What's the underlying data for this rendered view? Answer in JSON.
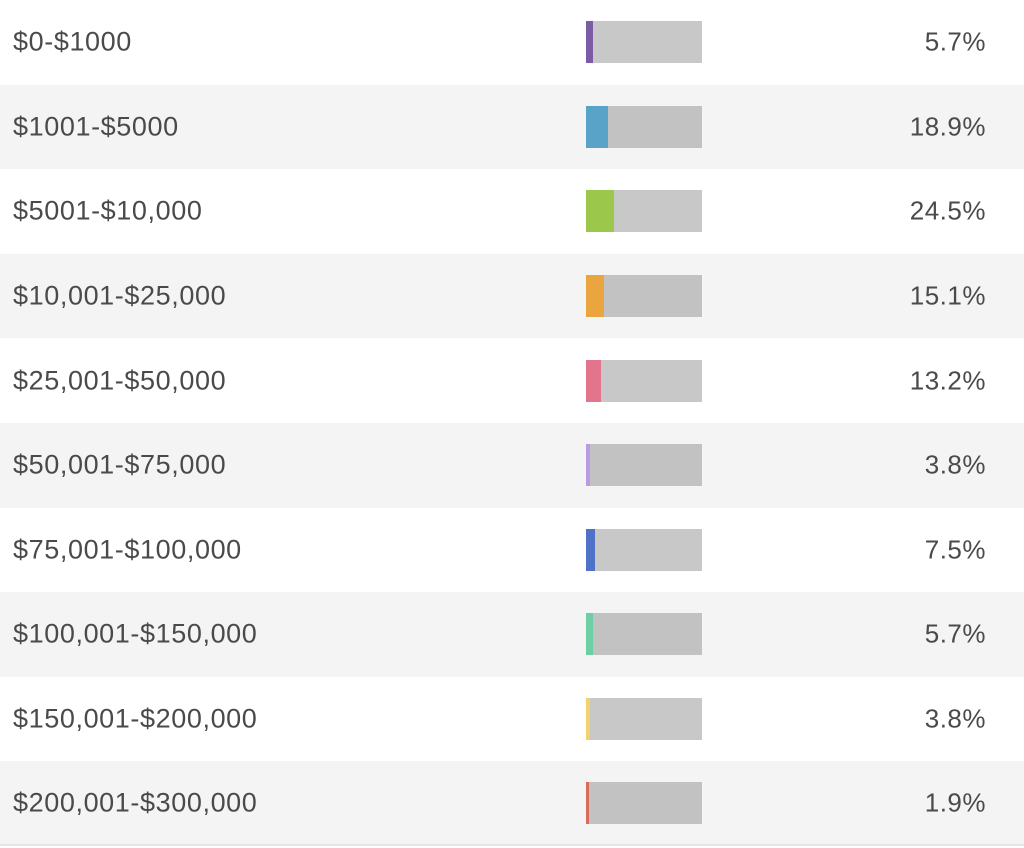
{
  "chart_data": {
    "type": "bar",
    "categories": [
      "$0-$1000",
      "$1001-$5000",
      "$5001-$10,000",
      "$10,001-$25,000",
      "$25,001-$50,000",
      "$50,001-$75,000",
      "$75,001-$100,000",
      "$100,001-$150,000",
      "$150,001-$200,000",
      "$200,001-$300,000"
    ],
    "values": [
      5.7,
      18.9,
      24.5,
      15.1,
      13.2,
      3.8,
      7.5,
      5.7,
      3.8,
      1.9
    ],
    "value_labels": [
      "5.7%",
      "18.9%",
      "24.5%",
      "15.1%",
      "13.2%",
      "3.8%",
      "7.5%",
      "5.7%",
      "3.8%",
      "1.9%"
    ],
    "colors": [
      "#7b5aa6",
      "#5aa3c8",
      "#9bc74a",
      "#eba53f",
      "#e2758c",
      "#b89be0",
      "#4d72c8",
      "#6ecfa6",
      "#f2d36b",
      "#d96a5c"
    ],
    "track_color": "#c8c8c8",
    "title": "",
    "xlabel": "",
    "ylabel": "",
    "ylim": [
      0,
      100
    ],
    "grid": false
  }
}
